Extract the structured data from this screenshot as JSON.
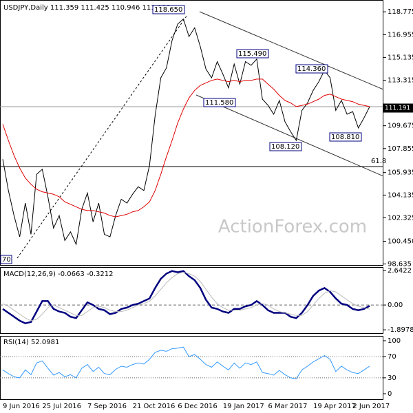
{
  "chart_data": [
    {
      "type": "line",
      "title": "USDJPY,Daily  111.359 111.425 110.946 111.191",
      "categories": [
        "9 Jun 2016",
        null,
        null,
        null,
        null,
        null,
        null,
        "25 Jul 2016",
        null,
        null,
        null,
        null,
        null,
        null,
        null,
        "7 Sep 2016",
        null,
        null,
        null,
        null,
        null,
        null,
        null,
        "21 Oct 2016",
        null,
        null,
        null,
        null,
        null,
        null,
        null,
        "6 Dec 2016",
        null,
        null,
        null,
        null,
        null,
        null,
        null,
        "19 Jan 2017",
        null,
        null,
        null,
        null,
        null,
        null,
        null,
        "6 Mar 2017",
        null,
        null,
        null,
        null,
        null,
        null,
        null,
        "19 Apr 2017",
        null,
        null,
        null,
        null,
        null,
        null,
        "2 Jun 2017",
        null,
        null,
        null
      ],
      "series": [
        {
          "name": "Price",
          "color": "#000000",
          "values": [
            107.0,
            104.5,
            102.5,
            100.8,
            103.5,
            101.0,
            105.8,
            106.2,
            104.0,
            101.5,
            102.5,
            100.5,
            101.2,
            100.2,
            103.0,
            104.3,
            102.0,
            103.5,
            101.0,
            100.8,
            102.5,
            103.8,
            103.5,
            104.2,
            104.8,
            104.5,
            106.5,
            110.5,
            113.5,
            114.3,
            116.5,
            117.8,
            118.2,
            116.8,
            117.5,
            116.0,
            114.2,
            113.5,
            114.8,
            113.8,
            112.7,
            114.6,
            113.0,
            114.8,
            114.5,
            115.0,
            111.8,
            111.3,
            110.6,
            111.7,
            110.0,
            109.2,
            108.5,
            110.9,
            111.5,
            112.5,
            113.2,
            114.1,
            113.5,
            110.9,
            111.7,
            110.6,
            110.8,
            109.5,
            110.3,
            111.191
          ]
        },
        {
          "name": "MA",
          "color": "#e00000",
          "values": [
            109.8,
            108.5,
            107.3,
            106.3,
            105.5,
            105.0,
            104.6,
            104.4,
            104.3,
            104.2,
            104.0,
            103.6,
            103.4,
            103.2,
            103.0,
            102.9,
            102.9,
            102.8,
            102.7,
            102.5,
            102.4,
            102.5,
            102.6,
            102.8,
            102.9,
            103.2,
            103.6,
            104.5,
            105.8,
            107.2,
            108.5,
            109.9,
            111.0,
            111.9,
            112.5,
            112.9,
            113.1,
            113.3,
            113.4,
            113.3,
            113.2,
            113.3,
            113.2,
            113.3,
            113.3,
            113.4,
            113.4,
            113.0,
            112.6,
            112.1,
            111.7,
            111.5,
            111.2,
            111.3,
            111.4,
            111.6,
            111.8,
            112.1,
            112.2,
            112.0,
            111.8,
            111.7,
            111.6,
            111.4,
            111.3,
            111.2
          ]
        }
      ],
      "ylim": [
        98.55,
        119.5
      ],
      "yticks": [
        118.775,
        116.955,
        115.135,
        113.315,
        109.675,
        107.855,
        105.935,
        104.135,
        102.325,
        {
          "value": 100.45,
          "label": "100.450"
        },
        98.635
      ],
      "annotations": [
        "118.650",
        "115.490",
        "114.360",
        "111.580",
        "108.120",
        "108.810",
        "61.8",
        "70",
        "111.191"
      ],
      "watermark": "ActionForex.com"
    },
    {
      "type": "line",
      "title": "MACD(12,26,9) -0.0663 -0.3212",
      "series": [
        {
          "name": "MACD",
          "color": "#00007f",
          "values": [
            -0.3,
            -0.6,
            -0.9,
            -1.2,
            -1.4,
            -1.3,
            -0.5,
            0.3,
            0.3,
            -0.3,
            -0.5,
            -0.6,
            -0.9,
            -1.0,
            -0.4,
            0.2,
            0.0,
            -0.3,
            -0.4,
            -0.7,
            -0.6,
            -0.3,
            -0.2,
            0.0,
            0.1,
            0.3,
            0.5,
            1.3,
            2.0,
            2.4,
            2.6,
            2.5,
            2.6,
            2.2,
            1.9,
            1.3,
            0.4,
            -0.2,
            -0.3,
            -0.5,
            -0.6,
            -0.3,
            -0.3,
            -0.1,
            0.0,
            0.3,
            0.0,
            -0.4,
            -0.6,
            -0.6,
            -0.6,
            -0.9,
            -1.0,
            -0.6,
            0.0,
            0.7,
            1.1,
            1.3,
            1.0,
            0.5,
            0.1,
            0.0,
            -0.3,
            -0.4,
            -0.3,
            -0.0663
          ]
        },
        {
          "name": "Signal",
          "color": "#bbbbbb",
          "values": [
            0.1,
            -0.1,
            -0.4,
            -0.7,
            -1.0,
            -1.2,
            -1.1,
            -0.7,
            -0.2,
            0.0,
            -0.2,
            -0.4,
            -0.6,
            -0.8,
            -0.8,
            -0.5,
            -0.2,
            -0.1,
            -0.2,
            -0.4,
            -0.5,
            -0.5,
            -0.4,
            -0.2,
            0.0,
            0.1,
            0.3,
            0.7,
            1.2,
            1.7,
            2.1,
            2.4,
            2.5,
            2.4,
            2.2,
            1.8,
            1.2,
            0.6,
            0.1,
            -0.2,
            -0.4,
            -0.4,
            -0.4,
            -0.3,
            -0.2,
            0.0,
            0.1,
            0.0,
            -0.3,
            -0.5,
            -0.6,
            -0.7,
            -0.8,
            -0.8,
            -0.5,
            0.0,
            0.5,
            0.9,
            1.1,
            1.0,
            0.7,
            0.4,
            0.1,
            -0.1,
            -0.2,
            -0.3212
          ]
        }
      ],
      "ylim": [
        -2.1,
        2.9
      ],
      "yticks": [
        2.6422,
        {
          "value": 0,
          "label": "0.00"
        },
        -1.8978
      ],
      "reference_lines": [
        0
      ]
    },
    {
      "type": "line",
      "title": "RSI(14) 52.0981",
      "series": [
        {
          "name": "RSI",
          "color": "#3399ff",
          "values": [
            45,
            38,
            32,
            30,
            45,
            36,
            58,
            62,
            48,
            35,
            40,
            32,
            36,
            30,
            48,
            55,
            42,
            50,
            38,
            36,
            46,
            52,
            50,
            55,
            58,
            56,
            65,
            78,
            82,
            80,
            85,
            86,
            88,
            70,
            74,
            65,
            55,
            50,
            60,
            52,
            45,
            58,
            48,
            58,
            55,
            60,
            40,
            38,
            35,
            44,
            36,
            30,
            28,
            45,
            52,
            60,
            66,
            72,
            65,
            42,
            52,
            45,
            40,
            38,
            45,
            52.0981
          ]
        }
      ],
      "ylim": [
        0,
        100
      ],
      "yticks": [
        100,
        70,
        30,
        0
      ],
      "reference_lines": [
        70,
        30
      ]
    }
  ]
}
